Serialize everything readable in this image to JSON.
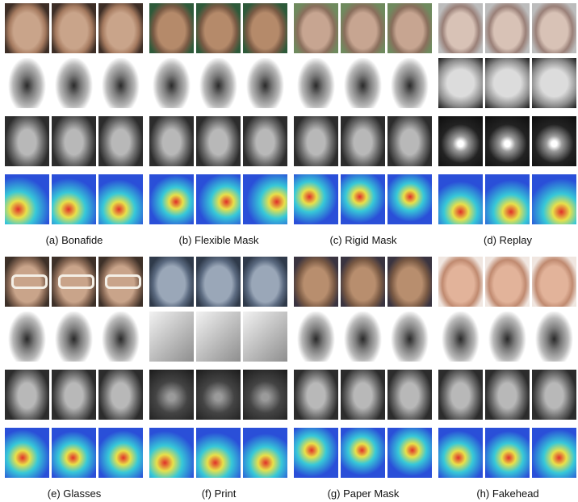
{
  "figure": {
    "captions": [
      "(a) Bonafide",
      "(b) Flexible Mask",
      "(c) Rigid Mask",
      "(d) Replay",
      "(e) Glasses",
      "(f) Print",
      "(g) Paper Mask",
      "(h) Fakehead"
    ],
    "row_types": [
      "RGB",
      "Depth",
      "IR",
      "Attention map"
    ],
    "colors": {
      "skin": "#c9a48a",
      "skin_dark": "#a57a5f",
      "depth_bg": "#ffffff",
      "ir_bg": "#3a3a3a",
      "heat_blue": "#2a4fd8",
      "heat_cyan": "#37c8d8",
      "heat_yellow": "#e8e04a",
      "heat_red": "#e0302a"
    }
  }
}
